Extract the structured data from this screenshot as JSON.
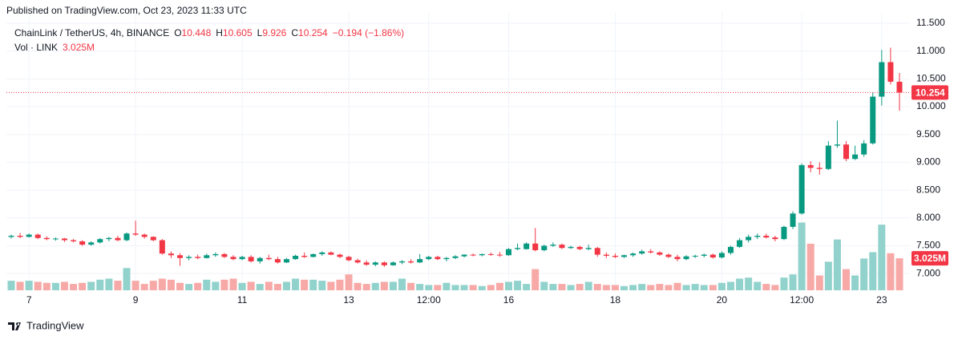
{
  "header": {
    "published": "Published on TradingView.com, Oct 23, 2023 11:33 UTC",
    "symbol": "ChainLink / TetherUS, 4h, BINANCE",
    "ohlc": [
      {
        "label": "O",
        "text": "10.448"
      },
      {
        "label": "H",
        "text": "10.605"
      },
      {
        "label": "L",
        "text": "9.926"
      },
      {
        "label": "C",
        "text": "10.254"
      }
    ],
    "change": "−0.194 (−1.86%)",
    "volume_title": "Vol · LINK"
  },
  "footer": {
    "brand": "TradingView"
  },
  "chart_data": {
    "type": "candlestick",
    "up_color": "#089981",
    "down_color": "#f23645",
    "volume_up_color": "#92d2cc",
    "volume_down_color": "#f7a9a7",
    "grid": true,
    "ylim": [
      6.7,
      11.6
    ],
    "yticks": [
      {
        "value": 7,
        "label": "7.000"
      },
      {
        "value": 7.5,
        "label": "7.500"
      },
      {
        "value": 8,
        "label": "8.000"
      },
      {
        "value": 8.5,
        "label": "8.500"
      },
      {
        "value": 9,
        "label": "9.000"
      },
      {
        "value": 9.5,
        "label": "9.500"
      },
      {
        "value": 10,
        "label": "10.000"
      },
      {
        "value": 10.5,
        "label": "10.500"
      },
      {
        "value": 11,
        "label": "11.000"
      },
      {
        "value": 11.5,
        "label": "11.500"
      }
    ],
    "last_price_label": "10.254",
    "volume_value_label": "3.025M",
    "categories": [
      null,
      null,
      "7",
      null,
      null,
      null,
      null,
      null,
      null,
      null,
      null,
      null,
      null,
      null,
      "9",
      null,
      null,
      null,
      null,
      null,
      null,
      null,
      null,
      null,
      null,
      null,
      "11",
      null,
      null,
      null,
      null,
      null,
      null,
      null,
      null,
      null,
      null,
      null,
      "13",
      null,
      null,
      null,
      null,
      null,
      null,
      null,
      null,
      "12:00",
      null,
      null,
      null,
      null,
      null,
      null,
      null,
      null,
      "16",
      null,
      null,
      null,
      null,
      null,
      null,
      null,
      null,
      null,
      null,
      null,
      "18",
      null,
      null,
      null,
      null,
      null,
      null,
      null,
      null,
      null,
      null,
      null,
      "20",
      null,
      null,
      null,
      null,
      null,
      null,
      null,
      null,
      "12:00",
      null,
      null,
      null,
      null,
      null,
      null,
      null,
      null,
      "23",
      null,
      null
    ],
    "candles": [
      [
        7.66,
        7.7,
        7.63,
        7.68
      ],
      [
        7.68,
        7.73,
        7.64,
        7.66
      ],
      [
        7.66,
        7.72,
        7.65,
        7.7
      ],
      [
        7.7,
        7.72,
        7.62,
        7.64
      ],
      [
        7.64,
        7.67,
        7.6,
        7.62
      ],
      [
        7.62,
        7.65,
        7.59,
        7.63
      ],
      [
        7.63,
        7.64,
        7.57,
        7.6
      ],
      [
        7.6,
        7.62,
        7.56,
        7.58
      ],
      [
        7.58,
        7.6,
        7.5,
        7.52
      ],
      [
        7.52,
        7.58,
        7.5,
        7.56
      ],
      [
        7.56,
        7.64,
        7.54,
        7.62
      ],
      [
        7.62,
        7.66,
        7.58,
        7.64
      ],
      [
        7.64,
        7.68,
        7.58,
        7.6
      ],
      [
        7.6,
        7.74,
        7.58,
        7.72
      ],
      [
        7.72,
        7.95,
        7.68,
        7.7
      ],
      [
        7.7,
        7.72,
        7.63,
        7.66
      ],
      [
        7.66,
        7.67,
        7.58,
        7.6
      ],
      [
        7.6,
        7.62,
        7.34,
        7.36
      ],
      [
        7.36,
        7.4,
        7.28,
        7.33
      ],
      [
        7.33,
        7.37,
        7.14,
        7.28
      ],
      [
        7.28,
        7.33,
        7.24,
        7.3
      ],
      [
        7.3,
        7.34,
        7.26,
        7.28
      ],
      [
        7.28,
        7.36,
        7.27,
        7.33
      ],
      [
        7.33,
        7.38,
        7.3,
        7.35
      ],
      [
        7.35,
        7.37,
        7.28,
        7.3
      ],
      [
        7.3,
        7.33,
        7.24,
        7.26
      ],
      [
        7.26,
        7.32,
        7.24,
        7.3
      ],
      [
        7.3,
        7.33,
        7.2,
        7.22
      ],
      [
        7.22,
        7.3,
        7.18,
        7.28
      ],
      [
        7.28,
        7.34,
        7.24,
        7.26
      ],
      [
        7.26,
        7.3,
        7.18,
        7.2
      ],
      [
        7.2,
        7.28,
        7.19,
        7.26
      ],
      [
        7.26,
        7.34,
        7.25,
        7.32
      ],
      [
        7.32,
        7.38,
        7.28,
        7.3
      ],
      [
        7.3,
        7.36,
        7.29,
        7.35
      ],
      [
        7.35,
        7.4,
        7.32,
        7.38
      ],
      [
        7.38,
        7.4,
        7.33,
        7.34
      ],
      [
        7.34,
        7.36,
        7.28,
        7.3
      ],
      [
        7.3,
        7.32,
        7.22,
        7.24
      ],
      [
        7.24,
        7.27,
        7.18,
        7.2
      ],
      [
        7.2,
        7.24,
        7.14,
        7.16
      ],
      [
        7.16,
        7.22,
        7.13,
        7.2
      ],
      [
        7.2,
        7.22,
        7.12,
        7.15
      ],
      [
        7.15,
        7.22,
        7.14,
        7.2
      ],
      [
        7.2,
        7.24,
        7.17,
        7.22
      ],
      [
        7.22,
        7.26,
        7.18,
        7.2
      ],
      [
        7.2,
        7.35,
        7.19,
        7.26
      ],
      [
        7.26,
        7.32,
        7.24,
        7.3
      ],
      [
        7.3,
        7.32,
        7.24,
        7.26
      ],
      [
        7.26,
        7.3,
        7.22,
        7.28
      ],
      [
        7.28,
        7.33,
        7.26,
        7.31
      ],
      [
        7.31,
        7.35,
        7.29,
        7.34
      ],
      [
        7.34,
        7.36,
        7.31,
        7.33
      ],
      [
        7.33,
        7.36,
        7.31,
        7.35
      ],
      [
        7.35,
        7.38,
        7.32,
        7.34
      ],
      [
        7.34,
        7.39,
        7.3,
        7.33
      ],
      [
        7.33,
        7.46,
        7.32,
        7.44
      ],
      [
        7.44,
        7.54,
        7.42,
        7.46
      ],
      [
        7.44,
        7.56,
        7.43,
        7.54
      ],
      [
        7.54,
        7.82,
        7.4,
        7.42
      ],
      [
        7.42,
        7.52,
        7.4,
        7.5
      ],
      [
        7.5,
        7.56,
        7.48,
        7.52
      ],
      [
        7.52,
        7.54,
        7.44,
        7.46
      ],
      [
        7.46,
        7.5,
        7.44,
        7.48
      ],
      [
        7.48,
        7.5,
        7.42,
        7.44
      ],
      [
        7.44,
        7.52,
        7.42,
        7.46
      ],
      [
        7.46,
        7.48,
        7.3,
        7.34
      ],
      [
        7.34,
        7.38,
        7.28,
        7.32
      ],
      [
        7.32,
        7.36,
        7.28,
        7.3
      ],
      [
        7.3,
        7.34,
        7.28,
        7.33
      ],
      [
        7.33,
        7.38,
        7.3,
        7.36
      ],
      [
        7.36,
        7.43,
        7.34,
        7.4
      ],
      [
        7.4,
        7.44,
        7.36,
        7.38
      ],
      [
        7.38,
        7.4,
        7.32,
        7.34
      ],
      [
        7.34,
        7.36,
        7.28,
        7.3
      ],
      [
        7.3,
        7.34,
        7.22,
        7.26
      ],
      [
        7.26,
        7.33,
        7.24,
        7.31
      ],
      [
        7.31,
        7.34,
        7.28,
        7.32
      ],
      [
        7.32,
        7.36,
        7.29,
        7.34
      ],
      [
        7.34,
        7.36,
        7.27,
        7.29
      ],
      [
        7.29,
        7.4,
        7.27,
        7.37
      ],
      [
        7.37,
        7.5,
        7.34,
        7.48
      ],
      [
        7.48,
        7.64,
        7.46,
        7.6
      ],
      [
        7.6,
        7.7,
        7.56,
        7.66
      ],
      [
        7.66,
        7.72,
        7.62,
        7.68
      ],
      [
        7.68,
        7.72,
        7.63,
        7.65
      ],
      [
        7.65,
        7.68,
        7.58,
        7.62
      ],
      [
        7.62,
        7.86,
        7.6,
        7.84
      ],
      [
        7.84,
        8.12,
        7.8,
        8.08
      ],
      [
        8.08,
        8.98,
        8.06,
        8.95
      ],
      [
        8.95,
        9.02,
        8.82,
        8.9
      ],
      [
        8.9,
        9.0,
        8.78,
        8.88
      ],
      [
        8.88,
        9.38,
        8.86,
        9.3
      ],
      [
        9.3,
        9.75,
        9.26,
        9.32
      ],
      [
        9.32,
        9.38,
        9.02,
        9.06
      ],
      [
        9.06,
        9.3,
        9.04,
        9.14
      ],
      [
        9.14,
        9.4,
        9.1,
        9.34
      ],
      [
        9.34,
        10.26,
        9.32,
        10.18
      ],
      [
        10.18,
        11.02,
        10.02,
        10.8
      ],
      [
        10.8,
        11.06,
        10.4,
        10.448
      ],
      [
        10.448,
        10.605,
        9.926,
        10.254
      ]
    ],
    "volumes": [
      0.9,
      0.8,
      0.9,
      0.8,
      0.7,
      0.7,
      0.8,
      0.6,
      0.7,
      0.8,
      1.0,
      1.1,
      0.9,
      2.1,
      0.9,
      0.6,
      0.9,
      1.1,
      1.0,
      0.7,
      0.6,
      0.7,
      1.0,
      0.8,
      1.0,
      1.1,
      0.7,
      0.8,
      0.6,
      0.8,
      0.6,
      0.8,
      1.1,
      1.0,
      1.0,
      0.9,
      0.8,
      1.0,
      1.5,
      0.7,
      0.6,
      0.7,
      0.8,
      0.8,
      1.1,
      0.7,
      0.6,
      0.5,
      0.5,
      0.7,
      0.5,
      0.5,
      0.5,
      0.4,
      0.5,
      0.7,
      0.8,
      0.9,
      0.6,
      2.0,
      0.8,
      0.6,
      0.6,
      0.5,
      0.6,
      0.8,
      0.6,
      0.5,
      0.5,
      0.4,
      0.5,
      0.6,
      0.5,
      0.6,
      0.5,
      0.7,
      0.5,
      0.6,
      0.5,
      0.5,
      0.7,
      0.8,
      1.1,
      1.2,
      0.8,
      0.6,
      0.5,
      1.2,
      1.5,
      6.4,
      4.4,
      1.4,
      2.7,
      4.8,
      2.0,
      1.4,
      3.0,
      3.6,
      6.2,
      3.5,
      3.025
    ]
  }
}
